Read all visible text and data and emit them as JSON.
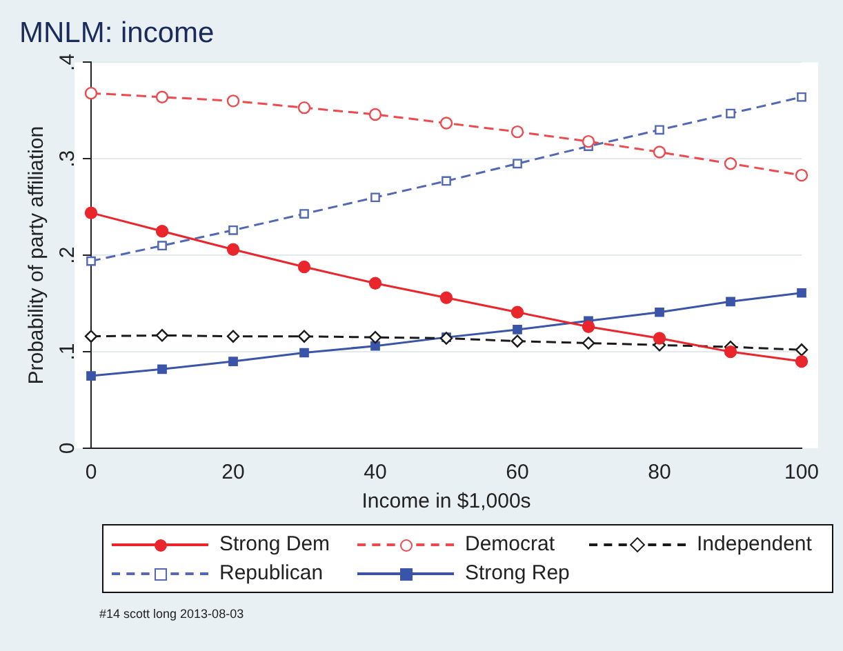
{
  "chart_data": {
    "type": "line",
    "title": "MNLM: income",
    "xlabel": "Income in $1,000s",
    "ylabel": "Probability of party affiliation",
    "x": [
      0,
      10,
      20,
      30,
      40,
      50,
      60,
      70,
      80,
      90,
      100
    ],
    "xlim": [
      0,
      100
    ],
    "xticks": [
      0,
      20,
      40,
      60,
      80,
      100
    ],
    "ylim": [
      0,
      0.4
    ],
    "yticks": [
      0,
      {
        "value": 0.1,
        "label": ".1"
      },
      {
        "value": 0.2,
        "label": ".2"
      },
      {
        "value": 0.3,
        "label": ".3"
      },
      {
        "value": 0.4,
        "label": ".4"
      }
    ],
    "grid": "y",
    "legend": "bottom",
    "annotations": [
      "#14 scott long 2013-08-03"
    ],
    "series": [
      {
        "name": "Strong Dem",
        "color": "#e8262c",
        "marker": "circle",
        "line_style": "solid",
        "values": [
          0.244,
          0.225,
          0.206,
          0.188,
          0.171,
          0.156,
          0.141,
          0.126,
          0.114,
          0.1,
          0.09
        ]
      },
      {
        "name": "Democrat",
        "color": "#ec4a4e",
        "marker": "circle",
        "line_style": "dashed",
        "values": [
          0.368,
          0.364,
          0.36,
          0.353,
          0.346,
          0.337,
          0.328,
          0.318,
          0.307,
          0.295,
          0.283
        ]
      },
      {
        "name": "Independent",
        "color": "#1a1a1a",
        "marker": "diamond",
        "line_style": "dashed",
        "values": [
          0.116,
          0.117,
          0.116,
          0.116,
          0.115,
          0.114,
          0.111,
          0.109,
          0.107,
          0.105,
          0.102
        ]
      },
      {
        "name": "Republican",
        "color": "#5268b4",
        "marker": "square",
        "line_style": "dashed",
        "values": [
          0.194,
          0.21,
          0.226,
          0.243,
          0.26,
          0.277,
          0.295,
          0.313,
          0.33,
          0.347,
          0.364
        ]
      },
      {
        "name": "Strong Rep",
        "color": "#3a54a8",
        "marker": "square",
        "line_style": "solid",
        "values": [
          0.075,
          0.082,
          0.09,
          0.099,
          0.106,
          0.115,
          0.123,
          0.132,
          0.141,
          0.152,
          0.161
        ]
      }
    ]
  }
}
